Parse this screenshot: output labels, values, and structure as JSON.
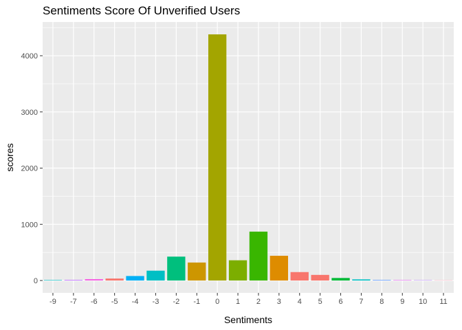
{
  "chart_data": {
    "type": "bar",
    "title": "Sentiments Score Of Unverified Users",
    "xlabel": "Sentiments",
    "ylabel": "scores",
    "categories": [
      "-9",
      "-7",
      "-6",
      "-5",
      "-4",
      "-3",
      "-2",
      "-1",
      "0",
      "1",
      "2",
      "3",
      "4",
      "5",
      "6",
      "7",
      "8",
      "9",
      "10",
      "11"
    ],
    "values": [
      8,
      12,
      25,
      35,
      80,
      175,
      425,
      320,
      4380,
      360,
      870,
      440,
      150,
      100,
      45,
      20,
      10,
      8,
      6,
      3
    ],
    "colors": [
      "#00BFC4",
      "#C77CFF",
      "#F564E3",
      "#F8766D",
      "#00B0F6",
      "#00BFC4",
      "#00BF7D",
      "#CD9600",
      "#A3A500",
      "#7CAE00",
      "#39B600",
      "#DE8C00",
      "#F8766D",
      "#F8766D",
      "#00BA38",
      "#00BFC4",
      "#619CFF",
      "#E76BF3",
      "#B983FF",
      "#FF6C91"
    ],
    "yticks": [
      0,
      1000,
      2000,
      3000,
      4000
    ],
    "ylim": [
      -220,
      4600
    ],
    "grid": true,
    "legend": "none",
    "panel_background": "#EBEBEB",
    "grid_color": "#FFFFFF"
  }
}
